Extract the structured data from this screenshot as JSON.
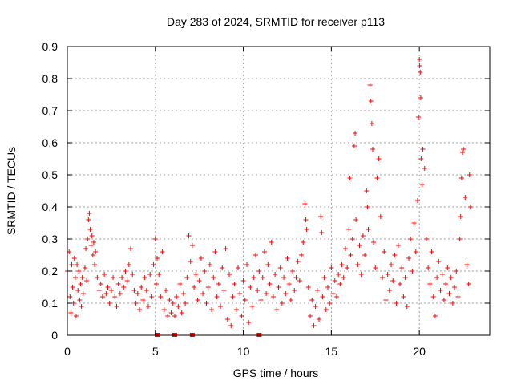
{
  "chart_data": {
    "type": "scatter",
    "title": "Day 283 of 2024, SRMTID for receiver p113",
    "xlabel": "GPS time / hours",
    "ylabel": "SRMTID / TECUs",
    "xlim": [
      0,
      24
    ],
    "ylim": [
      0,
      0.9
    ],
    "xticks": [
      0,
      5,
      10,
      15,
      20
    ],
    "xtick_labels": [
      "0",
      "5",
      "10",
      "15",
      "20"
    ],
    "yticks": [
      0,
      0.1,
      0.2,
      0.3,
      0.4,
      0.5,
      0.6,
      0.7,
      0.8,
      0.9
    ],
    "ytick_labels": [
      "0",
      "0.1",
      "0.2",
      "0.3",
      "0.4",
      "0.5",
      "0.6",
      "0.7",
      "0.8",
      "0.9"
    ],
    "grid": true,
    "marker": "+",
    "color": "#ff0000",
    "series": [
      {
        "name": "SRMTID",
        "points": [
          [
            0.0,
            0.2
          ],
          [
            0.1,
            0.26
          ],
          [
            0.15,
            0.12
          ],
          [
            0.2,
            0.07
          ],
          [
            0.25,
            0.22
          ],
          [
            0.3,
            0.15
          ],
          [
            0.35,
            0.1
          ],
          [
            0.4,
            0.24
          ],
          [
            0.45,
            0.18
          ],
          [
            0.5,
            0.06
          ],
          [
            0.55,
            0.22
          ],
          [
            0.6,
            0.14
          ],
          [
            0.65,
            0.2
          ],
          [
            0.7,
            0.11
          ],
          [
            0.75,
            0.16
          ],
          [
            0.8,
            0.09
          ],
          [
            0.85,
            0.18
          ],
          [
            0.9,
            0.13
          ],
          [
            1.0,
            0.21
          ],
          [
            1.05,
            0.27
          ],
          [
            1.1,
            0.17
          ],
          [
            1.15,
            0.3
          ],
          [
            1.2,
            0.36
          ],
          [
            1.25,
            0.38
          ],
          [
            1.3,
            0.33
          ],
          [
            1.35,
            0.28
          ],
          [
            1.4,
            0.31
          ],
          [
            1.45,
            0.25
          ],
          [
            1.5,
            0.29
          ],
          [
            1.55,
            0.22
          ],
          [
            1.6,
            0.26
          ],
          [
            1.7,
            0.18
          ],
          [
            1.8,
            0.14
          ],
          [
            1.9,
            0.16
          ],
          [
            2.0,
            0.12
          ],
          [
            2.1,
            0.19
          ],
          [
            2.2,
            0.13
          ],
          [
            2.3,
            0.15
          ],
          [
            2.4,
            0.1
          ],
          [
            2.5,
            0.14
          ],
          [
            2.6,
            0.18
          ],
          [
            2.7,
            0.12
          ],
          [
            2.8,
            0.09
          ],
          [
            2.9,
            0.16
          ],
          [
            3.0,
            0.13
          ],
          [
            3.1,
            0.18
          ],
          [
            3.2,
            0.15
          ],
          [
            3.3,
            0.2
          ],
          [
            3.4,
            0.17
          ],
          [
            3.5,
            0.22
          ],
          [
            3.6,
            0.27
          ],
          [
            3.7,
            0.19
          ],
          [
            3.8,
            0.14
          ],
          [
            3.9,
            0.1
          ],
          [
            4.0,
            0.13
          ],
          [
            4.1,
            0.08
          ],
          [
            4.2,
            0.15
          ],
          [
            4.3,
            0.11
          ],
          [
            4.4,
            0.18
          ],
          [
            4.5,
            0.14
          ],
          [
            4.6,
            0.09
          ],
          [
            4.7,
            0.19
          ],
          [
            4.8,
            0.12
          ],
          [
            4.9,
            0.22
          ],
          [
            5.0,
            0.3
          ],
          [
            5.05,
            0.16
          ],
          [
            5.1,
            0.24
          ],
          [
            5.2,
            0.19
          ],
          [
            5.3,
            0.12
          ],
          [
            5.4,
            0.26
          ],
          [
            5.5,
            0.08
          ],
          [
            5.6,
            0.14
          ],
          [
            5.7,
            0.06
          ],
          [
            5.8,
            0.11
          ],
          [
            5.9,
            0.07
          ],
          [
            6.0,
            0.1
          ],
          [
            6.1,
            0.06
          ],
          [
            6.2,
            0.12
          ],
          [
            6.3,
            0.09
          ],
          [
            6.4,
            0.16
          ],
          [
            6.5,
            0.07
          ],
          [
            6.6,
            0.13
          ],
          [
            6.7,
            0.1
          ],
          [
            6.8,
            0.18
          ],
          [
            6.9,
            0.31
          ],
          [
            7.0,
            0.23
          ],
          [
            7.1,
            0.28
          ],
          [
            7.2,
            0.15
          ],
          [
            7.3,
            0.19
          ],
          [
            7.4,
            0.11
          ],
          [
            7.5,
            0.17
          ],
          [
            7.6,
            0.24
          ],
          [
            7.7,
            0.13
          ],
          [
            7.8,
            0.2
          ],
          [
            7.9,
            0.1
          ],
          [
            8.0,
            0.15
          ],
          [
            8.1,
            0.22
          ],
          [
            8.2,
            0.08
          ],
          [
            8.3,
            0.18
          ],
          [
            8.4,
            0.26
          ],
          [
            8.5,
            0.12
          ],
          [
            8.6,
            0.16
          ],
          [
            8.7,
            0.09
          ],
          [
            8.8,
            0.21
          ],
          [
            8.9,
            0.14
          ],
          [
            9.0,
            0.27
          ],
          [
            9.1,
            0.05
          ],
          [
            9.2,
            0.19
          ],
          [
            9.3,
            0.03
          ],
          [
            9.4,
            0.12
          ],
          [
            9.5,
            0.16
          ],
          [
            9.6,
            0.08
          ],
          [
            9.7,
            0.21
          ],
          [
            9.8,
            0.13
          ],
          [
            9.9,
            0.06
          ],
          [
            10.0,
            0.17
          ],
          [
            10.1,
            0.11
          ],
          [
            10.2,
            0.22
          ],
          [
            10.3,
            0.04
          ],
          [
            10.4,
            0.15
          ],
          [
            10.5,
            0.09
          ],
          [
            10.6,
            0.18
          ],
          [
            10.7,
            0.25
          ],
          [
            10.8,
            0.14
          ],
          [
            10.9,
            0.2
          ],
          [
            11.0,
            0.11
          ],
          [
            11.1,
            0.18
          ],
          [
            11.2,
            0.26
          ],
          [
            11.3,
            0.13
          ],
          [
            11.4,
            0.22
          ],
          [
            11.5,
            0.16
          ],
          [
            11.6,
            0.29
          ],
          [
            11.7,
            0.12
          ],
          [
            11.8,
            0.19
          ],
          [
            11.9,
            0.08
          ],
          [
            12.0,
            0.15
          ],
          [
            12.1,
            0.21
          ],
          [
            12.2,
            0.1
          ],
          [
            12.3,
            0.18
          ],
          [
            12.4,
            0.13
          ],
          [
            12.5,
            0.24
          ],
          [
            12.6,
            0.16
          ],
          [
            12.7,
            0.11
          ],
          [
            12.8,
            0.2
          ],
          [
            12.9,
            0.14
          ],
          [
            13.0,
            0.18
          ],
          [
            13.1,
            0.23
          ],
          [
            13.2,
            0.17
          ],
          [
            13.3,
            0.25
          ],
          [
            13.4,
            0.29
          ],
          [
            13.5,
            0.41
          ],
          [
            13.55,
            0.36
          ],
          [
            13.6,
            0.33
          ],
          [
            13.7,
            0.15
          ],
          [
            13.8,
            0.06
          ],
          [
            13.9,
            0.11
          ],
          [
            14.0,
            0.03
          ],
          [
            14.1,
            0.09
          ],
          [
            14.2,
            0.14
          ],
          [
            14.3,
            0.05
          ],
          [
            14.4,
            0.37
          ],
          [
            14.45,
            0.32
          ],
          [
            14.5,
            0.12
          ],
          [
            14.6,
            0.18
          ],
          [
            14.7,
            0.08
          ],
          [
            14.8,
            0.15
          ],
          [
            14.9,
            0.1
          ],
          [
            15.0,
            0.21
          ],
          [
            15.1,
            0.13
          ],
          [
            15.2,
            0.17
          ],
          [
            15.3,
            0.12
          ],
          [
            15.4,
            0.19
          ],
          [
            15.5,
            0.16
          ],
          [
            15.6,
            0.22
          ],
          [
            15.7,
            0.18
          ],
          [
            15.8,
            0.27
          ],
          [
            15.9,
            0.21
          ],
          [
            16.0,
            0.33
          ],
          [
            16.05,
            0.49
          ],
          [
            16.1,
            0.25
          ],
          [
            16.2,
            0.3
          ],
          [
            16.3,
            0.59
          ],
          [
            16.35,
            0.63
          ],
          [
            16.4,
            0.36
          ],
          [
            16.5,
            0.22
          ],
          [
            16.6,
            0.28
          ],
          [
            16.7,
            0.19
          ],
          [
            16.8,
            0.31
          ],
          [
            16.9,
            0.25
          ],
          [
            17.0,
            0.45
          ],
          [
            17.05,
            0.4
          ],
          [
            17.1,
            0.33
          ],
          [
            17.2,
            0.78
          ],
          [
            17.25,
            0.73
          ],
          [
            17.3,
            0.66
          ],
          [
            17.35,
            0.58
          ],
          [
            17.4,
            0.29
          ],
          [
            17.5,
            0.21
          ],
          [
            17.6,
            0.49
          ],
          [
            17.7,
            0.55
          ],
          [
            17.8,
            0.37
          ],
          [
            17.9,
            0.18
          ],
          [
            18.0,
            0.26
          ],
          [
            18.1,
            0.11
          ],
          [
            18.2,
            0.19
          ],
          [
            18.3,
            0.14
          ],
          [
            18.4,
            0.22
          ],
          [
            18.5,
            0.17
          ],
          [
            18.6,
            0.25
          ],
          [
            18.7,
            0.1
          ],
          [
            18.8,
            0.28
          ],
          [
            18.9,
            0.16
          ],
          [
            19.0,
            0.21
          ],
          [
            19.1,
            0.12
          ],
          [
            19.2,
            0.18
          ],
          [
            19.3,
            0.09
          ],
          [
            19.4,
            0.24
          ],
          [
            19.5,
            0.3
          ],
          [
            19.6,
            0.2
          ],
          [
            19.7,
            0.35
          ],
          [
            19.8,
            0.26
          ],
          [
            19.9,
            0.42
          ],
          [
            19.95,
            0.68
          ],
          [
            20.0,
            0.86
          ],
          [
            20.02,
            0.84
          ],
          [
            20.05,
            0.82
          ],
          [
            20.08,
            0.74
          ],
          [
            20.1,
            0.55
          ],
          [
            20.15,
            0.47
          ],
          [
            20.2,
            0.58
          ],
          [
            20.3,
            0.52
          ],
          [
            20.4,
            0.3
          ],
          [
            20.5,
            0.21
          ],
          [
            20.6,
            0.16
          ],
          [
            20.7,
            0.26
          ],
          [
            20.8,
            0.12
          ],
          [
            20.9,
            0.06
          ],
          [
            21.0,
            0.18
          ],
          [
            21.1,
            0.23
          ],
          [
            21.2,
            0.14
          ],
          [
            21.3,
            0.19
          ],
          [
            21.4,
            0.11
          ],
          [
            21.5,
            0.16
          ],
          [
            21.6,
            0.21
          ],
          [
            21.7,
            0.13
          ],
          [
            21.8,
            0.18
          ],
          [
            21.9,
            0.1
          ],
          [
            22.0,
            0.15
          ],
          [
            22.1,
            0.2
          ],
          [
            22.2,
            0.12
          ],
          [
            22.3,
            0.3
          ],
          [
            22.35,
            0.37
          ],
          [
            22.4,
            0.49
          ],
          [
            22.45,
            0.57
          ],
          [
            22.5,
            0.58
          ],
          [
            22.6,
            0.43
          ],
          [
            22.7,
            0.22
          ],
          [
            22.8,
            0.16
          ],
          [
            22.85,
            0.5
          ],
          [
            22.9,
            0.4
          ]
        ]
      }
    ],
    "baseline_markers_x": [
      5.1,
      6.1,
      7.1,
      10.9
    ]
  }
}
